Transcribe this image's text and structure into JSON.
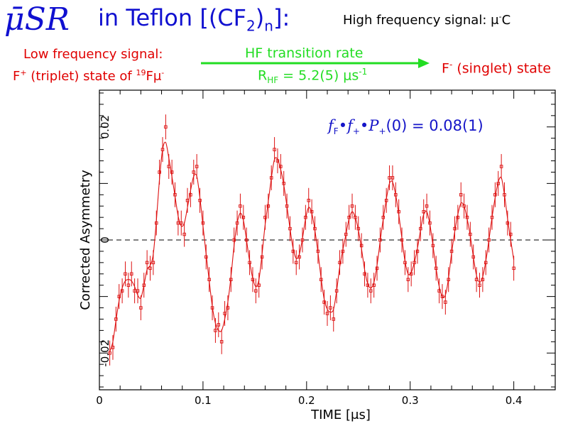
{
  "header": {
    "musr": "μ̄SR",
    "teflon": "in Teflon [(CF",
    "teflon_sub2": "2",
    "teflon_mid": ")",
    "teflon_subn": "n",
    "teflon_end": "]:",
    "hf_signal": "High frequency signal: μ",
    "hf_signal_sup": "-",
    "hf_signal_end": "C"
  },
  "labels": {
    "lf_line1": "Low frequency signal:",
    "lf_line2_a": "F",
    "lf_line2_sup": "+",
    "lf_line2_b": " (triplet) state of ",
    "lf_line2_sup19": "19",
    "lf_line2_c": "Fμ",
    "lf_line2_sup2": "-",
    "hf_transition": "HF transition rate",
    "rate_r": "R",
    "rate_sub": "HF",
    "rate_val": " = 5.2(5) μs",
    "rate_sup": "-1",
    "f_singlet_a": "F",
    "f_singlet_sup": "-",
    "f_singlet_b": " (singlet) state",
    "annotation_f": "f",
    "annotation_fsub": "F",
    "annotation_dot1": "•",
    "annotation_fplus": "f",
    "annotation_fplus_sub": "+",
    "annotation_dot2": "•",
    "annotation_p": "P",
    "annotation_psub": "+",
    "annotation_rest": "(0) = 0.08(1)"
  },
  "colors": {
    "title_blue": "#1010d0",
    "red": "#e00000",
    "green": "#22dd22",
    "data_red": "#dd1111"
  },
  "chart_data": {
    "type": "scatter",
    "xlabel": "TIME [μs]",
    "ylabel": "Corrected Asymmetry",
    "xlim": [
      0,
      0.44
    ],
    "ylim": [
      -0.0265,
      0.0265
    ],
    "xticks": [
      0,
      0.1,
      0.2,
      0.3,
      0.4
    ],
    "xtick_labels": [
      "0",
      "0.1",
      "0.2",
      "0.3",
      "0.4"
    ],
    "yticks": [
      -0.02,
      0,
      0.02
    ],
    "ytick_labels": [
      "-0.02",
      "0",
      "0.02"
    ],
    "zero_line": "dashed",
    "series": [
      {
        "x": [
          0.01,
          0.013,
          0.016,
          0.019,
          0.022,
          0.025,
          0.028,
          0.031,
          0.034,
          0.037,
          0.04,
          0.043,
          0.046,
          0.049,
          0.052,
          0.055,
          0.058,
          0.061,
          0.064,
          0.067,
          0.07,
          0.073,
          0.076,
          0.079,
          0.082,
          0.085,
          0.088,
          0.091,
          0.094,
          0.097,
          0.1,
          0.103,
          0.106,
          0.109,
          0.112,
          0.115,
          0.118,
          0.121,
          0.124,
          0.127,
          0.13,
          0.133,
          0.136,
          0.139,
          0.142,
          0.145,
          0.148,
          0.151,
          0.154,
          0.157,
          0.16,
          0.163,
          0.166,
          0.169,
          0.172,
          0.175,
          0.178,
          0.181,
          0.184,
          0.187,
          0.19,
          0.193,
          0.196,
          0.199,
          0.202,
          0.205,
          0.208,
          0.211,
          0.214,
          0.217,
          0.22,
          0.223,
          0.226,
          0.229,
          0.232,
          0.235,
          0.238,
          0.241,
          0.244,
          0.247,
          0.25,
          0.253,
          0.256,
          0.259,
          0.262,
          0.265,
          0.268,
          0.271,
          0.274,
          0.277,
          0.28,
          0.283,
          0.286,
          0.289,
          0.292,
          0.295,
          0.298,
          0.301,
          0.304,
          0.307,
          0.31,
          0.313,
          0.316,
          0.319,
          0.322,
          0.325,
          0.328,
          0.331,
          0.334,
          0.337,
          0.34,
          0.343,
          0.346,
          0.349,
          0.352,
          0.355,
          0.358,
          0.361,
          0.364,
          0.367,
          0.37,
          0.373,
          0.376,
          0.379,
          0.382,
          0.385,
          0.388,
          0.391,
          0.394,
          0.397,
          0.4
        ],
        "y": [
          -0.02,
          -0.019,
          -0.014,
          -0.01,
          -0.009,
          -0.006,
          -0.008,
          -0.006,
          -0.009,
          -0.009,
          -0.012,
          -0.008,
          -0.004,
          -0.005,
          -0.004,
          0.003,
          0.012,
          0.016,
          0.02,
          0.013,
          0.012,
          0.008,
          0.003,
          0.003,
          0.001,
          0.007,
          0.008,
          0.012,
          0.013,
          0.007,
          0.003,
          -0.003,
          -0.007,
          -0.012,
          -0.016,
          -0.015,
          -0.018,
          -0.013,
          -0.012,
          -0.007,
          0.0,
          0.003,
          0.006,
          0.004,
          0.0,
          -0.004,
          -0.007,
          -0.009,
          -0.008,
          -0.003,
          0.004,
          0.006,
          0.011,
          0.016,
          0.014,
          0.013,
          0.01,
          0.006,
          0.002,
          -0.002,
          -0.004,
          -0.003,
          0.0,
          0.004,
          0.007,
          0.005,
          0.002,
          -0.002,
          -0.007,
          -0.011,
          -0.013,
          -0.012,
          -0.014,
          -0.009,
          -0.004,
          -0.002,
          0.001,
          0.004,
          0.006,
          0.004,
          0.002,
          -0.001,
          -0.006,
          -0.008,
          -0.009,
          -0.008,
          -0.005,
          0.0,
          0.004,
          0.007,
          0.011,
          0.011,
          0.008,
          0.005,
          0.0,
          -0.004,
          -0.007,
          -0.006,
          -0.004,
          -0.002,
          0.002,
          0.005,
          0.006,
          0.003,
          -0.001,
          -0.005,
          -0.009,
          -0.01,
          -0.011,
          -0.007,
          -0.002,
          0.002,
          0.004,
          0.008,
          0.006,
          0.004,
          0.001,
          -0.003,
          -0.007,
          -0.008,
          -0.007,
          -0.004,
          0.0,
          0.004,
          0.008,
          0.01,
          0.013,
          0.008,
          0.003,
          0.001,
          -0.005
        ],
        "err": 0.0022
      }
    ]
  }
}
